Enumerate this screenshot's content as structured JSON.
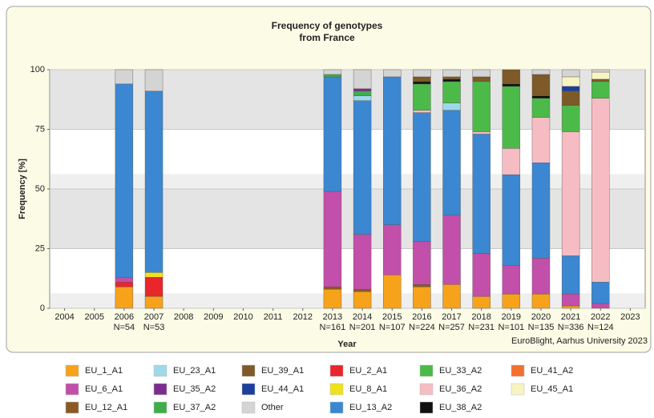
{
  "chart_data": {
    "type": "stacked_bar",
    "title": "Frequency of genotypes",
    "subtitle": "from France",
    "y_label": "Frequency [%]",
    "x_label": "Year",
    "credit": "EuroBlight, Aarhus University 2023",
    "categories": [
      "2004",
      "2005",
      "2006",
      "2007",
      "2008",
      "2009",
      "2010",
      "2011",
      "2012",
      "2013",
      "2014",
      "2015",
      "2016",
      "2017",
      "2018",
      "2019",
      "2020",
      "2021",
      "2022",
      "2023"
    ],
    "sample_sizes": [
      null,
      null,
      "N=54",
      "N=53",
      null,
      null,
      null,
      null,
      null,
      "N=161",
      "N=201",
      "N=107",
      "N=224",
      "N=257",
      "N=231",
      "N=101",
      "N=135",
      "N=336",
      "N=124",
      null
    ],
    "ylim": [
      0,
      100
    ],
    "yticks": [
      0,
      25,
      50,
      75,
      100
    ],
    "series": [
      {
        "name": "EU_1_A1",
        "color": "#f7a21b",
        "values": [
          null,
          null,
          9,
          5,
          null,
          null,
          null,
          null,
          null,
          8,
          7,
          14,
          9,
          10,
          5,
          6,
          6,
          1,
          0,
          null
        ]
      },
      {
        "name": "EU_2_A1",
        "color": "#e8262c",
        "values": [
          null,
          null,
          2,
          8,
          null,
          null,
          null,
          null,
          null,
          0,
          0,
          0,
          0,
          0,
          0,
          0,
          0,
          0,
          0,
          null
        ]
      },
      {
        "name": "EU_12_A1",
        "color": "#8a5a24",
        "values": [
          null,
          null,
          0,
          0,
          null,
          null,
          null,
          null,
          null,
          1,
          1,
          0,
          1,
          0,
          0,
          0,
          0,
          0,
          0,
          null
        ]
      },
      {
        "name": "EU_6_A1",
        "color": "#c24fa9",
        "values": [
          null,
          null,
          2,
          0,
          null,
          null,
          null,
          null,
          null,
          40,
          23,
          21,
          18,
          29,
          18,
          12,
          15,
          5,
          2,
          null
        ]
      },
      {
        "name": "EU_8_A1",
        "color": "#eee21e",
        "values": [
          null,
          null,
          0,
          2,
          null,
          null,
          null,
          null,
          null,
          0,
          0,
          0,
          0,
          0,
          0,
          0,
          0,
          0,
          0,
          null
        ]
      },
      {
        "name": "EU_13_A2",
        "color": "#3b87d1",
        "values": [
          null,
          null,
          81,
          76,
          null,
          null,
          null,
          null,
          null,
          48,
          56,
          62,
          54,
          44,
          50,
          38,
          40,
          16,
          9,
          null
        ]
      },
      {
        "name": "EU_36_A2",
        "color": "#f6bcc3",
        "values": [
          null,
          null,
          0,
          0,
          null,
          null,
          null,
          null,
          null,
          0,
          0,
          0,
          1,
          0,
          1,
          11,
          19,
          52,
          77,
          null
        ]
      },
      {
        "name": "EU_23_A1",
        "color": "#9fd9e9",
        "values": [
          null,
          null,
          0,
          0,
          null,
          null,
          null,
          null,
          null,
          0,
          2,
          0,
          0,
          3,
          0,
          0,
          0,
          0,
          0,
          null
        ]
      },
      {
        "name": "EU_33_A2",
        "color": "#4cba48",
        "values": [
          null,
          null,
          0,
          0,
          null,
          null,
          null,
          null,
          null,
          0,
          0,
          0,
          11,
          9,
          21,
          26,
          8,
          11,
          7,
          null
        ]
      },
      {
        "name": "EU_37_A2",
        "color": "#3fae4a",
        "values": [
          null,
          null,
          0,
          0,
          null,
          null,
          null,
          null,
          null,
          1,
          2,
          0,
          0,
          0,
          0,
          0,
          0,
          0,
          0,
          null
        ]
      },
      {
        "name": "EU_35_A2",
        "color": "#7b2d8e",
        "values": [
          null,
          null,
          0,
          0,
          null,
          null,
          null,
          null,
          null,
          0,
          1,
          0,
          0,
          0,
          0,
          0,
          0,
          0,
          0,
          null
        ]
      },
      {
        "name": "EU_38_A2",
        "color": "#111111",
        "values": [
          null,
          null,
          0,
          0,
          null,
          null,
          null,
          null,
          null,
          0,
          0,
          0,
          1,
          1,
          0,
          1,
          1,
          0,
          0,
          null
        ]
      },
      {
        "name": "EU_39_A1",
        "color": "#7d5a28",
        "values": [
          null,
          null,
          0,
          0,
          null,
          null,
          null,
          null,
          null,
          0,
          0,
          0,
          2,
          1,
          2,
          6,
          9,
          6,
          1,
          null
        ]
      },
      {
        "name": "EU_44_A1",
        "color": "#1c3f9e",
        "values": [
          null,
          null,
          0,
          0,
          null,
          null,
          null,
          null,
          null,
          0,
          0,
          0,
          0,
          0,
          0,
          0,
          0,
          2,
          0,
          null
        ]
      },
      {
        "name": "EU_41_A2",
        "color": "#f26f2e",
        "values": [
          null,
          null,
          0,
          0,
          null,
          null,
          null,
          null,
          null,
          0,
          0,
          0,
          0,
          0,
          0,
          0,
          0,
          0,
          0,
          null
        ]
      },
      {
        "name": "EU_45_A1",
        "color": "#f8f4c2",
        "values": [
          null,
          null,
          0,
          0,
          null,
          null,
          null,
          null,
          null,
          0,
          0,
          0,
          0,
          0,
          0,
          0,
          0,
          4,
          3,
          null
        ]
      },
      {
        "name": "Other",
        "color": "#d4d4d4",
        "values": [
          null,
          null,
          6,
          9,
          null,
          null,
          null,
          null,
          null,
          2,
          8,
          3,
          3,
          3,
          3,
          0,
          2,
          3,
          1,
          null
        ]
      }
    ],
    "grid": true
  }
}
